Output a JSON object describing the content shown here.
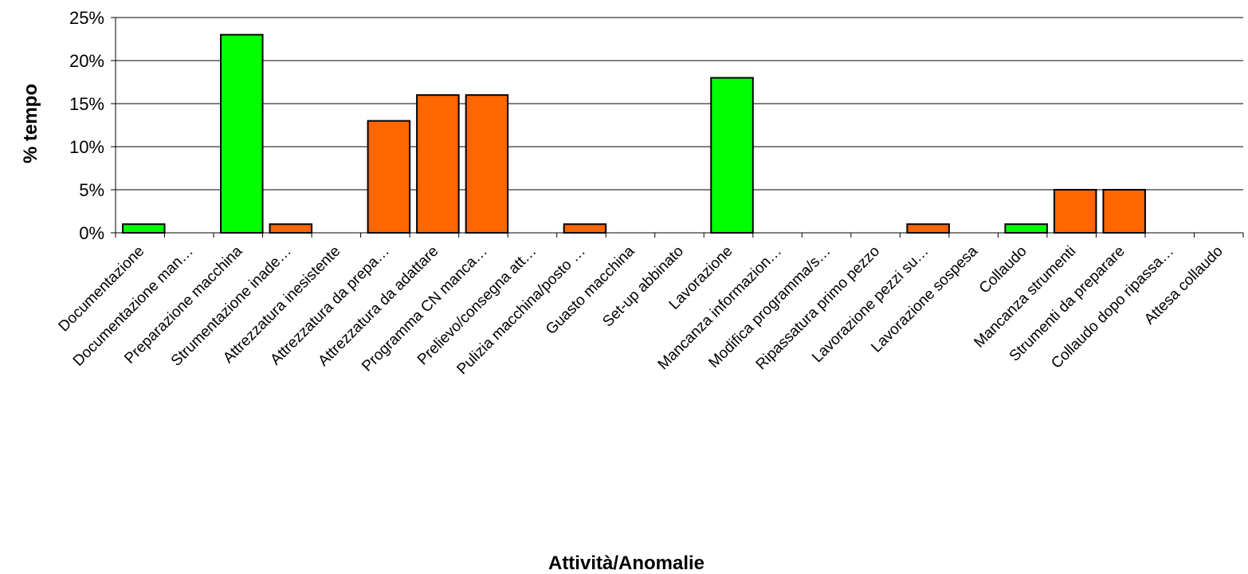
{
  "chart_data": {
    "type": "bar",
    "xlabel": "Attività/Anomalie",
    "ylabel": "% tempo",
    "ylim": [
      0,
      25
    ],
    "yticks": [
      "0%",
      "5%",
      "10%",
      "15%",
      "20%",
      "25%"
    ],
    "grid": true,
    "legend": "none",
    "categories": [
      "Documentazione",
      "Documentazione man…",
      "Preparazione macchina",
      "Strumentazione inade…",
      "Attrezzatura inesistente",
      "Attrezzatura da prepa…",
      "Attrezzatura da adattare",
      "Programma CN manca…",
      "Prelievo/consegna att…",
      "Pulizia macchina/posto …",
      "Guasto macchina",
      "Set-up abbinato",
      "Lavorazione",
      "Mancanza informazion…",
      "Modifica programma/s…",
      "Ripassatura primo pezzo",
      "Lavorazione pezzi su…",
      "Lavorazione sospesa",
      "Collaudo",
      "Mancanza strumenti",
      "Strumenti da preparare",
      "Collaudo dopo ripassa…",
      "Attesa collaudo"
    ],
    "values": [
      1,
      0,
      23,
      1,
      0,
      13,
      16,
      16,
      0,
      1,
      0,
      0,
      18,
      0,
      0,
      0,
      1,
      0,
      1,
      5,
      5,
      0,
      0
    ],
    "colors": [
      "#00ff00",
      "#ff6600",
      "#00ff00",
      "#ff6600",
      "#ff6600",
      "#ff6600",
      "#ff6600",
      "#ff6600",
      "#ff6600",
      "#ff6600",
      "#ff6600",
      "#ff6600",
      "#00ff00",
      "#ff6600",
      "#ff6600",
      "#ff6600",
      "#ff6600",
      "#ff6600",
      "#00ff00",
      "#ff6600",
      "#ff6600",
      "#ff6600",
      "#ff6600"
    ]
  }
}
